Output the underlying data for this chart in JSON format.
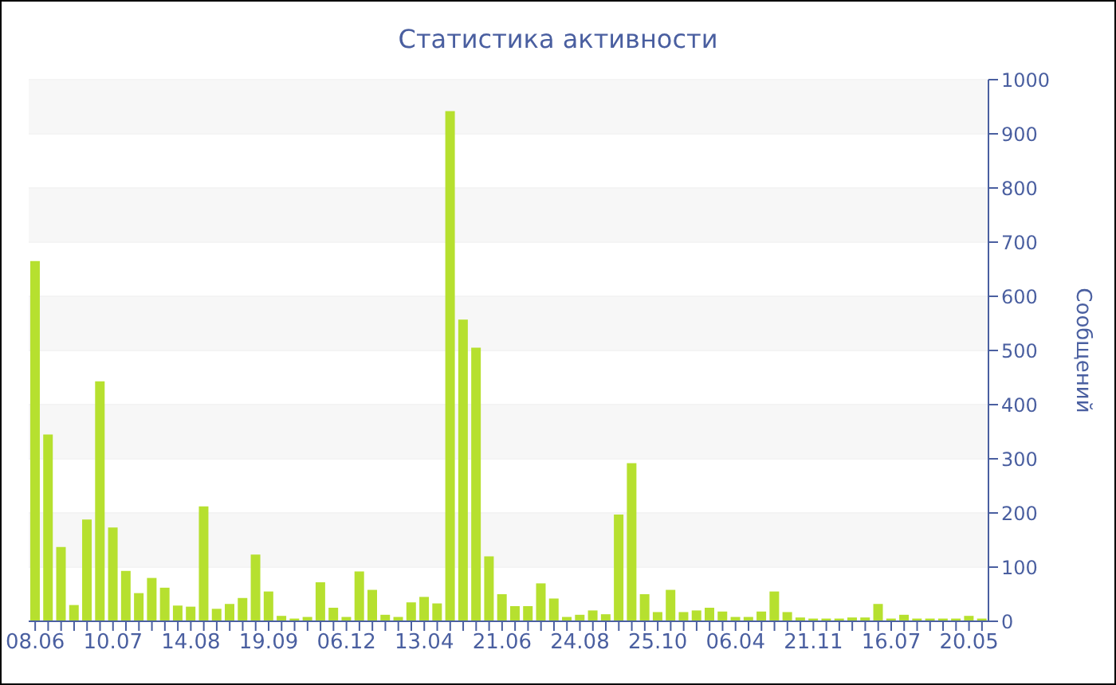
{
  "chart_data": {
    "type": "bar",
    "title": "Статистика активности",
    "ylabel": "Сообщений",
    "categories": [
      "08.06",
      null,
      null,
      null,
      null,
      null,
      "10.07",
      null,
      null,
      null,
      null,
      null,
      "14.08",
      null,
      null,
      null,
      null,
      null,
      "19.09",
      null,
      null,
      null,
      null,
      null,
      "06.12",
      null,
      null,
      null,
      null,
      null,
      "13.04",
      null,
      null,
      null,
      null,
      null,
      "21.06",
      null,
      null,
      null,
      null,
      null,
      "24.08",
      null,
      null,
      null,
      null,
      null,
      "25.10",
      null,
      null,
      null,
      null,
      null,
      "06.04",
      null,
      null,
      null,
      null,
      null,
      "21.11",
      null,
      null,
      null,
      null,
      null,
      "16.07",
      null,
      null,
      null,
      null,
      null,
      "20.05",
      null
    ],
    "values": [
      665,
      345,
      137,
      30,
      188,
      443,
      173,
      93,
      52,
      80,
      62,
      29,
      27,
      212,
      23,
      32,
      43,
      123,
      55,
      10,
      5,
      8,
      72,
      25,
      8,
      92,
      58,
      12,
      8,
      35,
      45,
      33,
      942,
      557,
      505,
      120,
      50,
      28,
      28,
      70,
      42,
      8,
      12,
      20,
      13,
      197,
      292,
      50,
      17,
      58,
      17,
      20,
      25,
      18,
      8,
      8,
      18,
      55,
      17,
      7,
      5,
      5,
      5,
      7,
      7,
      32,
      5,
      12,
      5,
      5,
      5,
      5,
      10,
      5
    ],
    "color": "#b6e02f",
    "ylim": [
      0,
      1000
    ],
    "yticks": [
      0,
      100,
      200,
      300,
      400,
      500,
      600,
      700,
      800,
      900,
      1000
    ],
    "grid": "y"
  }
}
